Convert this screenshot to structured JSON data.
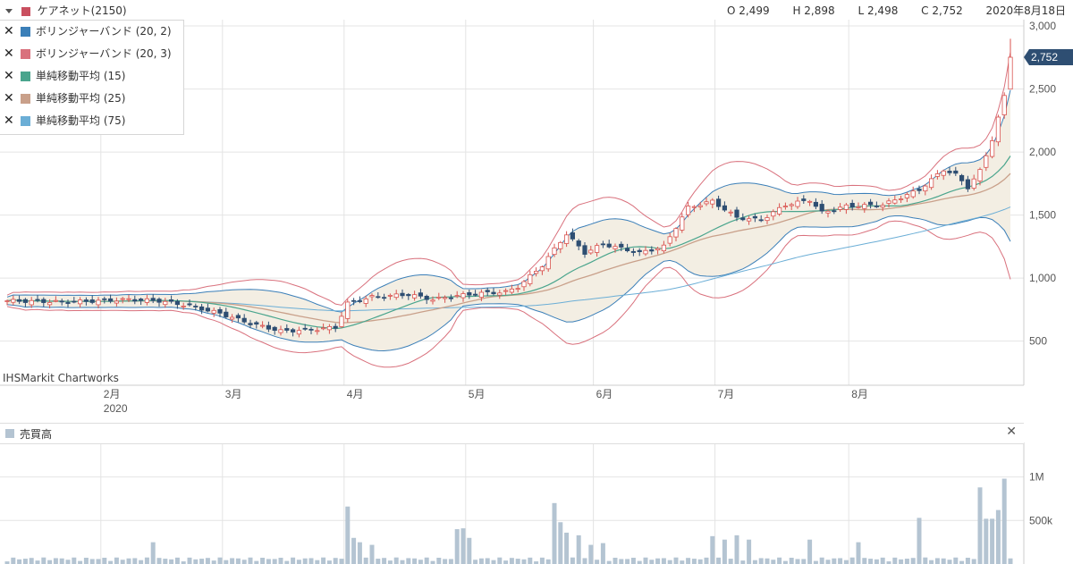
{
  "header": {
    "title": "ケアネット(2150)",
    "colors": {
      "title_swatch": "#c94f5f"
    },
    "ohlc": {
      "open": "O 2,499",
      "high": "H 2,898",
      "low": "L 2,498",
      "close": "C 2,752"
    },
    "date": "2020年8月18日"
  },
  "legend": {
    "close_symbol": "✕",
    "items": [
      {
        "label": "ボリンジャーバンド (20, 2)",
        "color": "#3b7fb8"
      },
      {
        "label": "ボリンジャーバンド (20, 3)",
        "color": "#d9717d"
      },
      {
        "label": "単純移動平均 (15)",
        "color": "#4aa58d"
      },
      {
        "label": "単純移動平均 (25)",
        "color": "#c9a08a"
      },
      {
        "label": "単純移動平均 (75)",
        "color": "#6baed6"
      }
    ]
  },
  "credit": "IHSMarkit Chartworks",
  "volume_panel": {
    "title": "売買高",
    "close_symbol": "✕",
    "color": "#b4c4d2"
  },
  "chart_data": {
    "type": "candlestick",
    "x_range": [
      "2020-01-20",
      "2020-08-18"
    ],
    "price_axis": {
      "ticks": [
        3000,
        2500,
        2000,
        1500,
        1000,
        500
      ],
      "tick_labels": [
        "3,000",
        "2,500",
        "2,000",
        "1,500",
        "1,000",
        "500"
      ],
      "range": [
        150,
        3050
      ]
    },
    "last_price": {
      "value": 2752,
      "label": "2,752"
    },
    "months": [
      {
        "label": "2月",
        "sub": "2020"
      },
      {
        "label": "3月",
        "sub": ""
      },
      {
        "label": "4月",
        "sub": ""
      },
      {
        "label": "5月",
        "sub": ""
      },
      {
        "label": "6月",
        "sub": ""
      },
      {
        "label": "7月",
        "sub": ""
      },
      {
        "label": "8月",
        "sub": ""
      }
    ],
    "close_keyframes": [
      [
        0,
        820
      ],
      [
        10,
        810
      ],
      [
        20,
        830
      ],
      [
        25,
        820
      ],
      [
        30,
        780
      ],
      [
        35,
        720
      ],
      [
        40,
        640
      ],
      [
        45,
        580
      ],
      [
        50,
        590
      ],
      [
        54,
        610
      ],
      [
        56,
        800
      ],
      [
        60,
        850
      ],
      [
        66,
        870
      ],
      [
        70,
        830
      ],
      [
        74,
        860
      ],
      [
        78,
        880
      ],
      [
        82,
        890
      ],
      [
        84,
        930
      ],
      [
        88,
        1100
      ],
      [
        90,
        1230
      ],
      [
        92,
        1350
      ],
      [
        95,
        1200
      ],
      [
        98,
        1270
      ],
      [
        104,
        1200
      ],
      [
        108,
        1250
      ],
      [
        112,
        1560
      ],
      [
        116,
        1610
      ],
      [
        120,
        1480
      ],
      [
        124,
        1460
      ],
      [
        128,
        1580
      ],
      [
        132,
        1620
      ],
      [
        134,
        1520
      ],
      [
        138,
        1570
      ],
      [
        144,
        1580
      ],
      [
        150,
        1700
      ],
      [
        154,
        1860
      ],
      [
        156,
        1820
      ],
      [
        158,
        1720
      ],
      [
        160,
        1850
      ],
      [
        162,
        2100
      ],
      [
        164,
        2440
      ],
      [
        165,
        2752
      ]
    ],
    "volume_axis": {
      "ticks": [
        1000000,
        500000
      ],
      "tick_labels": [
        "1M",
        "500k"
      ],
      "max": 1150000
    },
    "volume_spikes": [
      [
        24,
        250000
      ],
      [
        56,
        660000
      ],
      [
        57,
        300000
      ],
      [
        58,
        250000
      ],
      [
        60,
        220000
      ],
      [
        74,
        400000
      ],
      [
        75,
        410000
      ],
      [
        76,
        300000
      ],
      [
        90,
        700000
      ],
      [
        91,
        480000
      ],
      [
        92,
        360000
      ],
      [
        94,
        330000
      ],
      [
        96,
        220000
      ],
      [
        98,
        240000
      ],
      [
        116,
        320000
      ],
      [
        118,
        280000
      ],
      [
        120,
        330000
      ],
      [
        122,
        280000
      ],
      [
        132,
        280000
      ],
      [
        140,
        250000
      ],
      [
        150,
        530000
      ],
      [
        160,
        880000
      ],
      [
        161,
        520000
      ],
      [
        162,
        520000
      ],
      [
        163,
        620000
      ],
      [
        164,
        980000
      ]
    ],
    "volume_base": 50000
  }
}
